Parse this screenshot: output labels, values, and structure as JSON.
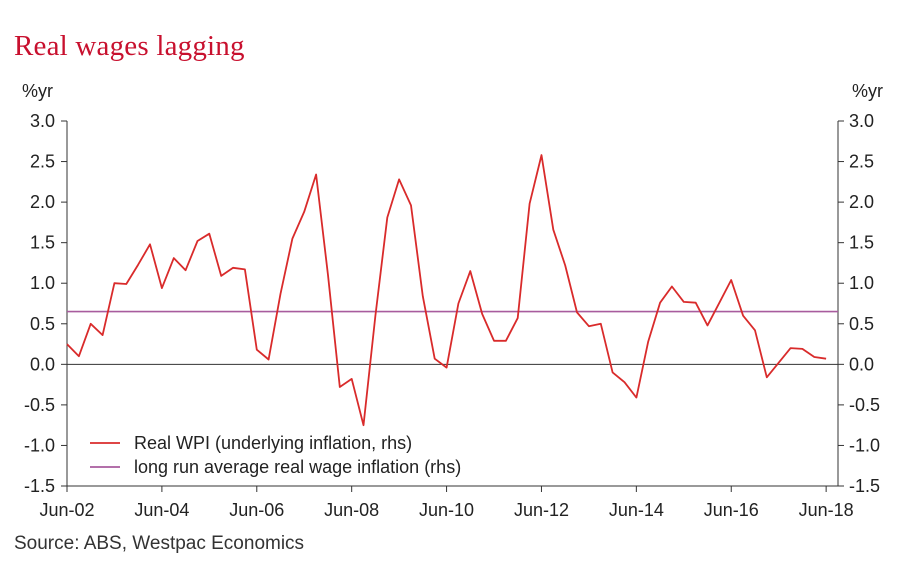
{
  "chart_data": {
    "type": "line",
    "title": "Real wages lagging",
    "source": "Source: ABS, Westpac Economics",
    "y_unit_left": "%yr",
    "y_unit_right": "%yr",
    "ylim": [
      -1.5,
      3.0
    ],
    "y_ticks": [
      3.0,
      2.5,
      2.0,
      1.5,
      1.0,
      0.5,
      0.0,
      -0.5,
      -1.0,
      -1.5
    ],
    "y_tick_labels": [
      "3.0",
      "2.5",
      "2.0",
      "1.5",
      "1.0",
      "0.5",
      "0.0",
      "-0.5",
      "-1.0",
      "-1.5"
    ],
    "xlim": [
      2002.5,
      2018.75
    ],
    "x_ticks": [
      2002.5,
      2004.5,
      2006.5,
      2008.5,
      2010.5,
      2012.5,
      2014.5,
      2016.5,
      2018.5
    ],
    "x_tick_labels": [
      "Jun-02",
      "Jun-04",
      "Jun-06",
      "Jun-08",
      "Jun-10",
      "Jun-12",
      "Jun-14",
      "Jun-16",
      "Jun-18"
    ],
    "grid": false,
    "legend_position": "bottom-left",
    "series": [
      {
        "name": "Real WPI (underlying inflation, rhs)",
        "color": "#d92b2b",
        "x": [
          2002.5,
          2002.75,
          2003.0,
          2003.25,
          2003.5,
          2003.75,
          2004.0,
          2004.25,
          2004.5,
          2004.75,
          2005.0,
          2005.25,
          2005.5,
          2005.75,
          2006.0,
          2006.25,
          2006.5,
          2006.75,
          2007.0,
          2007.25,
          2007.5,
          2007.75,
          2008.0,
          2008.25,
          2008.5,
          2008.75,
          2009.0,
          2009.25,
          2009.5,
          2009.75,
          2010.0,
          2010.25,
          2010.5,
          2010.75,
          2011.0,
          2011.25,
          2011.5,
          2011.75,
          2012.0,
          2012.25,
          2012.5,
          2012.75,
          2013.0,
          2013.25,
          2013.5,
          2013.75,
          2014.0,
          2014.25,
          2014.5,
          2014.75,
          2015.0,
          2015.25,
          2015.5,
          2015.75,
          2016.0,
          2016.25,
          2016.5,
          2016.75,
          2017.0,
          2017.25,
          2017.5,
          2017.75,
          2018.0,
          2018.25,
          2018.5
        ],
        "y": [
          0.25,
          0.1,
          0.5,
          0.36,
          1.0,
          0.99,
          1.23,
          1.48,
          0.94,
          1.31,
          1.16,
          1.52,
          1.61,
          1.09,
          1.19,
          1.17,
          0.18,
          0.06,
          0.87,
          1.55,
          1.88,
          2.34,
          1.1,
          -0.28,
          -0.18,
          -0.75,
          0.6,
          1.81,
          2.28,
          1.96,
          0.84,
          0.07,
          -0.04,
          0.75,
          1.15,
          0.62,
          0.29,
          0.29,
          0.57,
          1.98,
          2.58,
          1.66,
          1.22,
          0.64,
          0.47,
          0.5,
          -0.1,
          -0.22,
          -0.41,
          0.28,
          0.76,
          0.96,
          0.77,
          0.76,
          0.48,
          0.76,
          1.04,
          0.6,
          0.42,
          -0.16,
          0.02,
          0.2,
          0.19,
          0.09,
          0.07
        ]
      },
      {
        "name": "long run average real wage inflation (rhs)",
        "color": "#a85c9e",
        "x": [
          2002.5,
          2018.75
        ],
        "y": [
          0.65,
          0.65
        ]
      }
    ]
  }
}
